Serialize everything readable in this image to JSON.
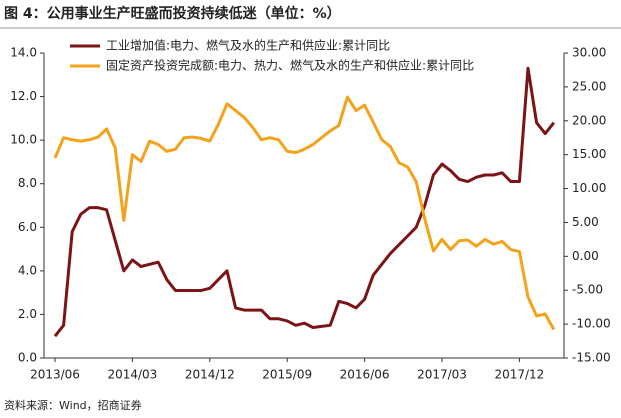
{
  "chart_data": {
    "type": "line",
    "title": "图 4：公用事业生产旺盛而投资持续低迷（单位：%）",
    "source": "资料来源：Wind，招商证券",
    "categories": [
      "2013/06",
      null,
      null,
      null,
      null,
      null,
      null,
      null,
      null,
      "2014/03",
      null,
      null,
      null,
      null,
      null,
      null,
      null,
      null,
      "2014/12",
      null,
      null,
      null,
      null,
      null,
      null,
      null,
      null,
      "2015/09",
      null,
      null,
      null,
      null,
      null,
      null,
      null,
      null,
      "2016/06",
      null,
      null,
      null,
      null,
      null,
      null,
      null,
      null,
      "2017/03",
      null,
      null,
      null,
      null,
      null,
      null,
      null,
      null,
      "2017/12",
      null,
      null,
      null,
      null
    ],
    "series": [
      {
        "name": "工业增加值:电力、燃气及水的生产和供应业:累计同比",
        "color": "#7b1416",
        "axis": "y",
        "values": [
          1.0,
          1.5,
          5.8,
          6.6,
          6.9,
          6.9,
          6.8,
          5.4,
          4.0,
          4.5,
          4.2,
          4.3,
          4.4,
          3.6,
          3.1,
          3.1,
          3.1,
          3.1,
          3.2,
          3.6,
          4.0,
          2.3,
          2.2,
          2.2,
          2.2,
          1.8,
          1.8,
          1.7,
          1.5,
          1.6,
          1.4,
          1.45,
          1.5,
          2.6,
          2.5,
          2.3,
          2.7,
          3.8,
          4.3,
          4.8,
          5.2,
          5.6,
          6.0,
          7.0,
          8.4,
          8.9,
          8.6,
          8.2,
          8.1,
          8.3,
          8.4,
          8.4,
          8.5,
          8.1,
          8.1,
          13.3,
          10.8,
          10.3,
          10.8
        ]
      },
      {
        "name": "固定资产投资完成额:电力、热力、燃气及水的生产和供应业:累计同比",
        "color": "#f5a21b",
        "axis": "y2",
        "values": [
          14.5,
          17.5,
          17.2,
          17.0,
          17.2,
          17.6,
          18.8,
          16.0,
          5.3,
          15.0,
          14.0,
          17.0,
          16.5,
          15.5,
          15.8,
          17.5,
          17.6,
          17.4,
          17.0,
          19.5,
          22.5,
          21.5,
          20.5,
          19.0,
          17.2,
          17.5,
          17.2,
          15.5,
          15.3,
          15.8,
          16.5,
          17.5,
          18.5,
          19.3,
          23.5,
          21.5,
          22.3,
          19.8,
          17.2,
          16.2,
          13.8,
          13.2,
          11.0,
          5.5,
          0.8,
          2.5,
          1.0,
          2.3,
          2.4,
          1.5,
          2.5,
          1.8,
          2.2,
          1.0,
          0.7,
          -6.0,
          -8.8,
          -8.5,
          -10.8
        ]
      }
    ],
    "ylim": [
      0,
      14
    ],
    "yticks": [
      {
        "value": 0,
        "label": "0.0"
      },
      {
        "value": 2,
        "label": "2.0"
      },
      {
        "value": 4,
        "label": "4.0"
      },
      {
        "value": 6,
        "label": "6.0"
      },
      {
        "value": 8,
        "label": "8.0"
      },
      {
        "value": 10,
        "label": "10.0"
      },
      {
        "value": 12,
        "label": "12.0"
      },
      {
        "value": 14,
        "label": "14.0"
      }
    ],
    "y2lim": [
      -15,
      30
    ],
    "y2ticks": [
      {
        "value": -15,
        "label": "-15.00"
      },
      {
        "value": -10,
        "label": "-10.00"
      },
      {
        "value": -5,
        "label": "-5.00"
      },
      {
        "value": 0,
        "label": "0.00"
      },
      {
        "value": 5,
        "label": "5.00"
      },
      {
        "value": 10,
        "label": "10.00"
      },
      {
        "value": 15,
        "label": "15.00"
      },
      {
        "value": 20,
        "label": "20.00"
      },
      {
        "value": 25,
        "label": "25.00"
      },
      {
        "value": 30,
        "label": "30.00"
      }
    ],
    "grid": false,
    "legend": "top"
  }
}
